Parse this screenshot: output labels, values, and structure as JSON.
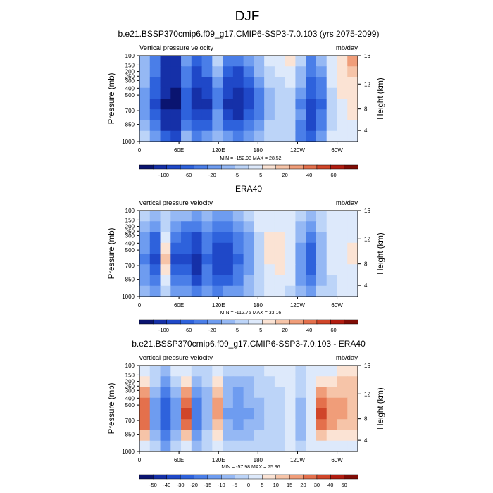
{
  "title": "DJF",
  "chart_data": [
    {
      "type": "heatmap",
      "title": "b.e21.BSSP370cmip6.f09_g17.CMIP6-SSP3-7.0.103 (yrs 2075-2099)",
      "subtitle_left": "Vertical pressure velocity",
      "units": "mb/day",
      "ylabel": "Pressure (mb)",
      "ylabel_right": "Height (km)",
      "xticks": [
        "0",
        "60E",
        "120E",
        "180",
        "120W",
        "60W"
      ],
      "yticks": [
        "100",
        "150",
        "200",
        "250",
        "300",
        "400",
        "500",
        "700",
        "850",
        "1000"
      ],
      "yticks_right": [
        "16",
        "12",
        "8",
        "4"
      ],
      "stats": "MIN = -152.93  MAX = 28.52",
      "colorbar": {
        "labels": [
          "-100",
          "-60",
          "-20",
          "-5",
          "5",
          "20",
          "40",
          "60"
        ],
        "colors": [
          "#0a1470",
          "#1530a8",
          "#1f48c8",
          "#2e62dc",
          "#4a7ee8",
          "#6e9cf0",
          "#95b8f4",
          "#bcd4f8",
          "#dde9fb",
          "#fbe3d4",
          "#f6c4a8",
          "#f09d79",
          "#e4704c",
          "#d04529",
          "#b21d11",
          "#800c06"
        ]
      },
      "field": [
        [
          0.42,
          0.3,
          0.1,
          0.12,
          0.35,
          0.2,
          0.3,
          0.46,
          0.3,
          0.25,
          0.35,
          0.4,
          0.5,
          0.52,
          0.6,
          0.45,
          0.3,
          0.4,
          0.55,
          0.6,
          0.7
        ],
        [
          0.4,
          0.28,
          0.12,
          0.1,
          0.3,
          0.18,
          0.25,
          0.4,
          0.22,
          0.18,
          0.3,
          0.38,
          0.48,
          0.52,
          0.55,
          0.42,
          0.25,
          0.35,
          0.55,
          0.62,
          0.65
        ],
        [
          0.38,
          0.22,
          0.1,
          0.08,
          0.25,
          0.15,
          0.18,
          0.35,
          0.18,
          0.14,
          0.22,
          0.32,
          0.45,
          0.48,
          0.52,
          0.38,
          0.22,
          0.3,
          0.5,
          0.6,
          0.62
        ],
        [
          0.36,
          0.2,
          0.08,
          0.06,
          0.22,
          0.12,
          0.14,
          0.3,
          0.14,
          0.1,
          0.18,
          0.28,
          0.42,
          0.46,
          0.48,
          0.35,
          0.2,
          0.28,
          0.48,
          0.58,
          0.62
        ],
        [
          0.34,
          0.18,
          0.06,
          0.05,
          0.2,
          0.1,
          0.12,
          0.28,
          0.12,
          0.08,
          0.16,
          0.26,
          0.4,
          0.44,
          0.45,
          0.3,
          0.16,
          0.24,
          0.45,
          0.55,
          0.6
        ],
        [
          0.36,
          0.22,
          0.08,
          0.07,
          0.24,
          0.14,
          0.16,
          0.32,
          0.16,
          0.12,
          0.2,
          0.3,
          0.42,
          0.46,
          0.46,
          0.32,
          0.18,
          0.26,
          0.46,
          0.54,
          0.58
        ],
        [
          0.4,
          0.26,
          0.12,
          0.1,
          0.3,
          0.2,
          0.22,
          0.36,
          0.24,
          0.2,
          0.28,
          0.34,
          0.44,
          0.46,
          0.44,
          0.28,
          0.15,
          0.3,
          0.48,
          0.52,
          0.55
        ],
        [
          0.44,
          0.34,
          0.2,
          0.18,
          0.38,
          0.28,
          0.32,
          0.4,
          0.34,
          0.3,
          0.36,
          0.4,
          0.46,
          0.48,
          0.46,
          0.3,
          0.2,
          0.36,
          0.5,
          0.52,
          0.52
        ]
      ]
    },
    {
      "type": "heatmap",
      "title": "ERA40",
      "subtitle_left": "vertical pressure velocity",
      "units": "mb/day",
      "ylabel": "Pressure (mb)",
      "ylabel_right": "Height (km)",
      "xticks": [
        "0",
        "60E",
        "120E",
        "180",
        "120W",
        "60W"
      ],
      "yticks": [
        "100",
        "150",
        "200",
        "250",
        "300",
        "400",
        "500",
        "700",
        "850",
        "1000"
      ],
      "yticks_right": [
        "16",
        "12",
        "8",
        "4"
      ],
      "stats": "MIN = -112.75  MAX = 33.16",
      "colorbar": {
        "labels": [
          "-100",
          "-60",
          "-20",
          "-5",
          "5",
          "20",
          "40",
          "60"
        ],
        "colors": [
          "#0a1470",
          "#1530a8",
          "#1f48c8",
          "#2e62dc",
          "#4a7ee8",
          "#6e9cf0",
          "#95b8f4",
          "#bcd4f8",
          "#dde9fb",
          "#fbe3d4",
          "#f6c4a8",
          "#f09d79",
          "#e4704c",
          "#d04529",
          "#b21d11",
          "#800c06"
        ]
      },
      "field": [
        [
          0.44,
          0.4,
          0.46,
          0.4,
          0.38,
          0.32,
          0.4,
          0.36,
          0.35,
          0.4,
          0.44,
          0.5,
          0.52,
          0.54,
          0.52,
          0.44,
          0.4,
          0.46,
          0.52,
          0.54,
          0.54
        ],
        [
          0.38,
          0.32,
          0.44,
          0.32,
          0.3,
          0.26,
          0.34,
          0.26,
          0.28,
          0.34,
          0.4,
          0.5,
          0.54,
          0.56,
          0.52,
          0.4,
          0.34,
          0.44,
          0.52,
          0.54,
          0.54
        ],
        [
          0.34,
          0.24,
          0.5,
          0.26,
          0.24,
          0.18,
          0.3,
          0.2,
          0.22,
          0.3,
          0.36,
          0.48,
          0.58,
          0.6,
          0.54,
          0.38,
          0.28,
          0.42,
          0.52,
          0.56,
          0.56
        ],
        [
          0.32,
          0.2,
          0.6,
          0.2,
          0.2,
          0.14,
          0.26,
          0.16,
          0.18,
          0.26,
          0.34,
          0.46,
          0.6,
          0.62,
          0.56,
          0.36,
          0.24,
          0.4,
          0.52,
          0.56,
          0.58
        ],
        [
          0.3,
          0.18,
          0.66,
          0.18,
          0.18,
          0.1,
          0.24,
          0.14,
          0.16,
          0.24,
          0.32,
          0.44,
          0.6,
          0.62,
          0.56,
          0.34,
          0.2,
          0.38,
          0.52,
          0.56,
          0.58
        ],
        [
          0.32,
          0.2,
          0.62,
          0.22,
          0.2,
          0.12,
          0.26,
          0.16,
          0.18,
          0.26,
          0.34,
          0.44,
          0.56,
          0.58,
          0.54,
          0.34,
          0.22,
          0.38,
          0.5,
          0.54,
          0.56
        ],
        [
          0.36,
          0.26,
          0.52,
          0.28,
          0.26,
          0.18,
          0.3,
          0.22,
          0.24,
          0.3,
          0.38,
          0.46,
          0.52,
          0.54,
          0.5,
          0.36,
          0.26,
          0.4,
          0.48,
          0.52,
          0.52
        ],
        [
          0.4,
          0.34,
          0.46,
          0.36,
          0.34,
          0.28,
          0.36,
          0.3,
          0.32,
          0.36,
          0.42,
          0.48,
          0.5,
          0.5,
          0.48,
          0.4,
          0.34,
          0.44,
          0.48,
          0.5,
          0.5
        ]
      ]
    },
    {
      "type": "heatmap",
      "title": "b.e21.BSSP370cmip6.f09_g17.CMIP6-SSP3-7.0.103 - ERA40",
      "subtitle_left": "vertical pressure velocity",
      "units": "mb/day",
      "ylabel": "Pressure (mb)",
      "ylabel_right": "Height (km)",
      "xticks": [
        "0",
        "60E",
        "120E",
        "180",
        "120W",
        "60W"
      ],
      "yticks": [
        "100",
        "150",
        "200",
        "250",
        "300",
        "400",
        "500",
        "700",
        "850",
        "1000"
      ],
      "yticks_right": [
        "16",
        "12",
        "8",
        "4"
      ],
      "stats": "MIN = -57.98  MAX = 75.96",
      "colorbar": {
        "labels": [
          "-50",
          "-40",
          "-30",
          "-20",
          "-15",
          "-10",
          "-5",
          "0",
          "5",
          "10",
          "15",
          "20",
          "30",
          "40",
          "50"
        ],
        "colors": [
          "#0a1470",
          "#1530a8",
          "#1f48c8",
          "#2e62dc",
          "#4a7ee8",
          "#6e9cf0",
          "#95b8f4",
          "#bcd4f8",
          "#dde9fb",
          "#fbe3d4",
          "#f6c4a8",
          "#f09d79",
          "#e4704c",
          "#d04529",
          "#b21d11",
          "#800c06"
        ]
      },
      "field": [
        [
          0.54,
          0.48,
          0.4,
          0.5,
          0.56,
          0.44,
          0.48,
          0.56,
          0.46,
          0.44,
          0.46,
          0.48,
          0.5,
          0.5,
          0.54,
          0.48,
          0.5,
          0.56,
          0.56,
          0.58,
          0.6
        ],
        [
          0.62,
          0.44,
          0.34,
          0.44,
          0.62,
          0.4,
          0.44,
          0.6,
          0.42,
          0.4,
          0.42,
          0.46,
          0.48,
          0.5,
          0.54,
          0.46,
          0.5,
          0.62,
          0.62,
          0.64,
          0.64
        ],
        [
          0.7,
          0.4,
          0.28,
          0.4,
          0.7,
          0.34,
          0.42,
          0.66,
          0.4,
          0.36,
          0.4,
          0.44,
          0.46,
          0.48,
          0.54,
          0.44,
          0.52,
          0.72,
          0.68,
          0.68,
          0.66
        ],
        [
          0.76,
          0.36,
          0.24,
          0.36,
          0.78,
          0.3,
          0.4,
          0.7,
          0.38,
          0.34,
          0.38,
          0.42,
          0.44,
          0.46,
          0.52,
          0.42,
          0.54,
          0.8,
          0.72,
          0.7,
          0.68
        ],
        [
          0.8,
          0.34,
          0.22,
          0.34,
          0.82,
          0.28,
          0.4,
          0.72,
          0.36,
          0.32,
          0.36,
          0.4,
          0.44,
          0.46,
          0.5,
          0.4,
          0.56,
          0.84,
          0.74,
          0.72,
          0.68
        ],
        [
          0.76,
          0.36,
          0.24,
          0.36,
          0.78,
          0.3,
          0.42,
          0.68,
          0.38,
          0.34,
          0.38,
          0.42,
          0.44,
          0.46,
          0.5,
          0.4,
          0.54,
          0.78,
          0.7,
          0.68,
          0.64
        ],
        [
          0.66,
          0.4,
          0.3,
          0.4,
          0.66,
          0.36,
          0.44,
          0.6,
          0.42,
          0.4,
          0.42,
          0.44,
          0.46,
          0.48,
          0.5,
          0.42,
          0.52,
          0.66,
          0.62,
          0.6,
          0.58
        ],
        [
          0.56,
          0.44,
          0.36,
          0.44,
          0.56,
          0.42,
          0.46,
          0.54,
          0.46,
          0.44,
          0.46,
          0.48,
          0.48,
          0.48,
          0.5,
          0.46,
          0.5,
          0.56,
          0.54,
          0.54,
          0.54
        ]
      ]
    }
  ]
}
